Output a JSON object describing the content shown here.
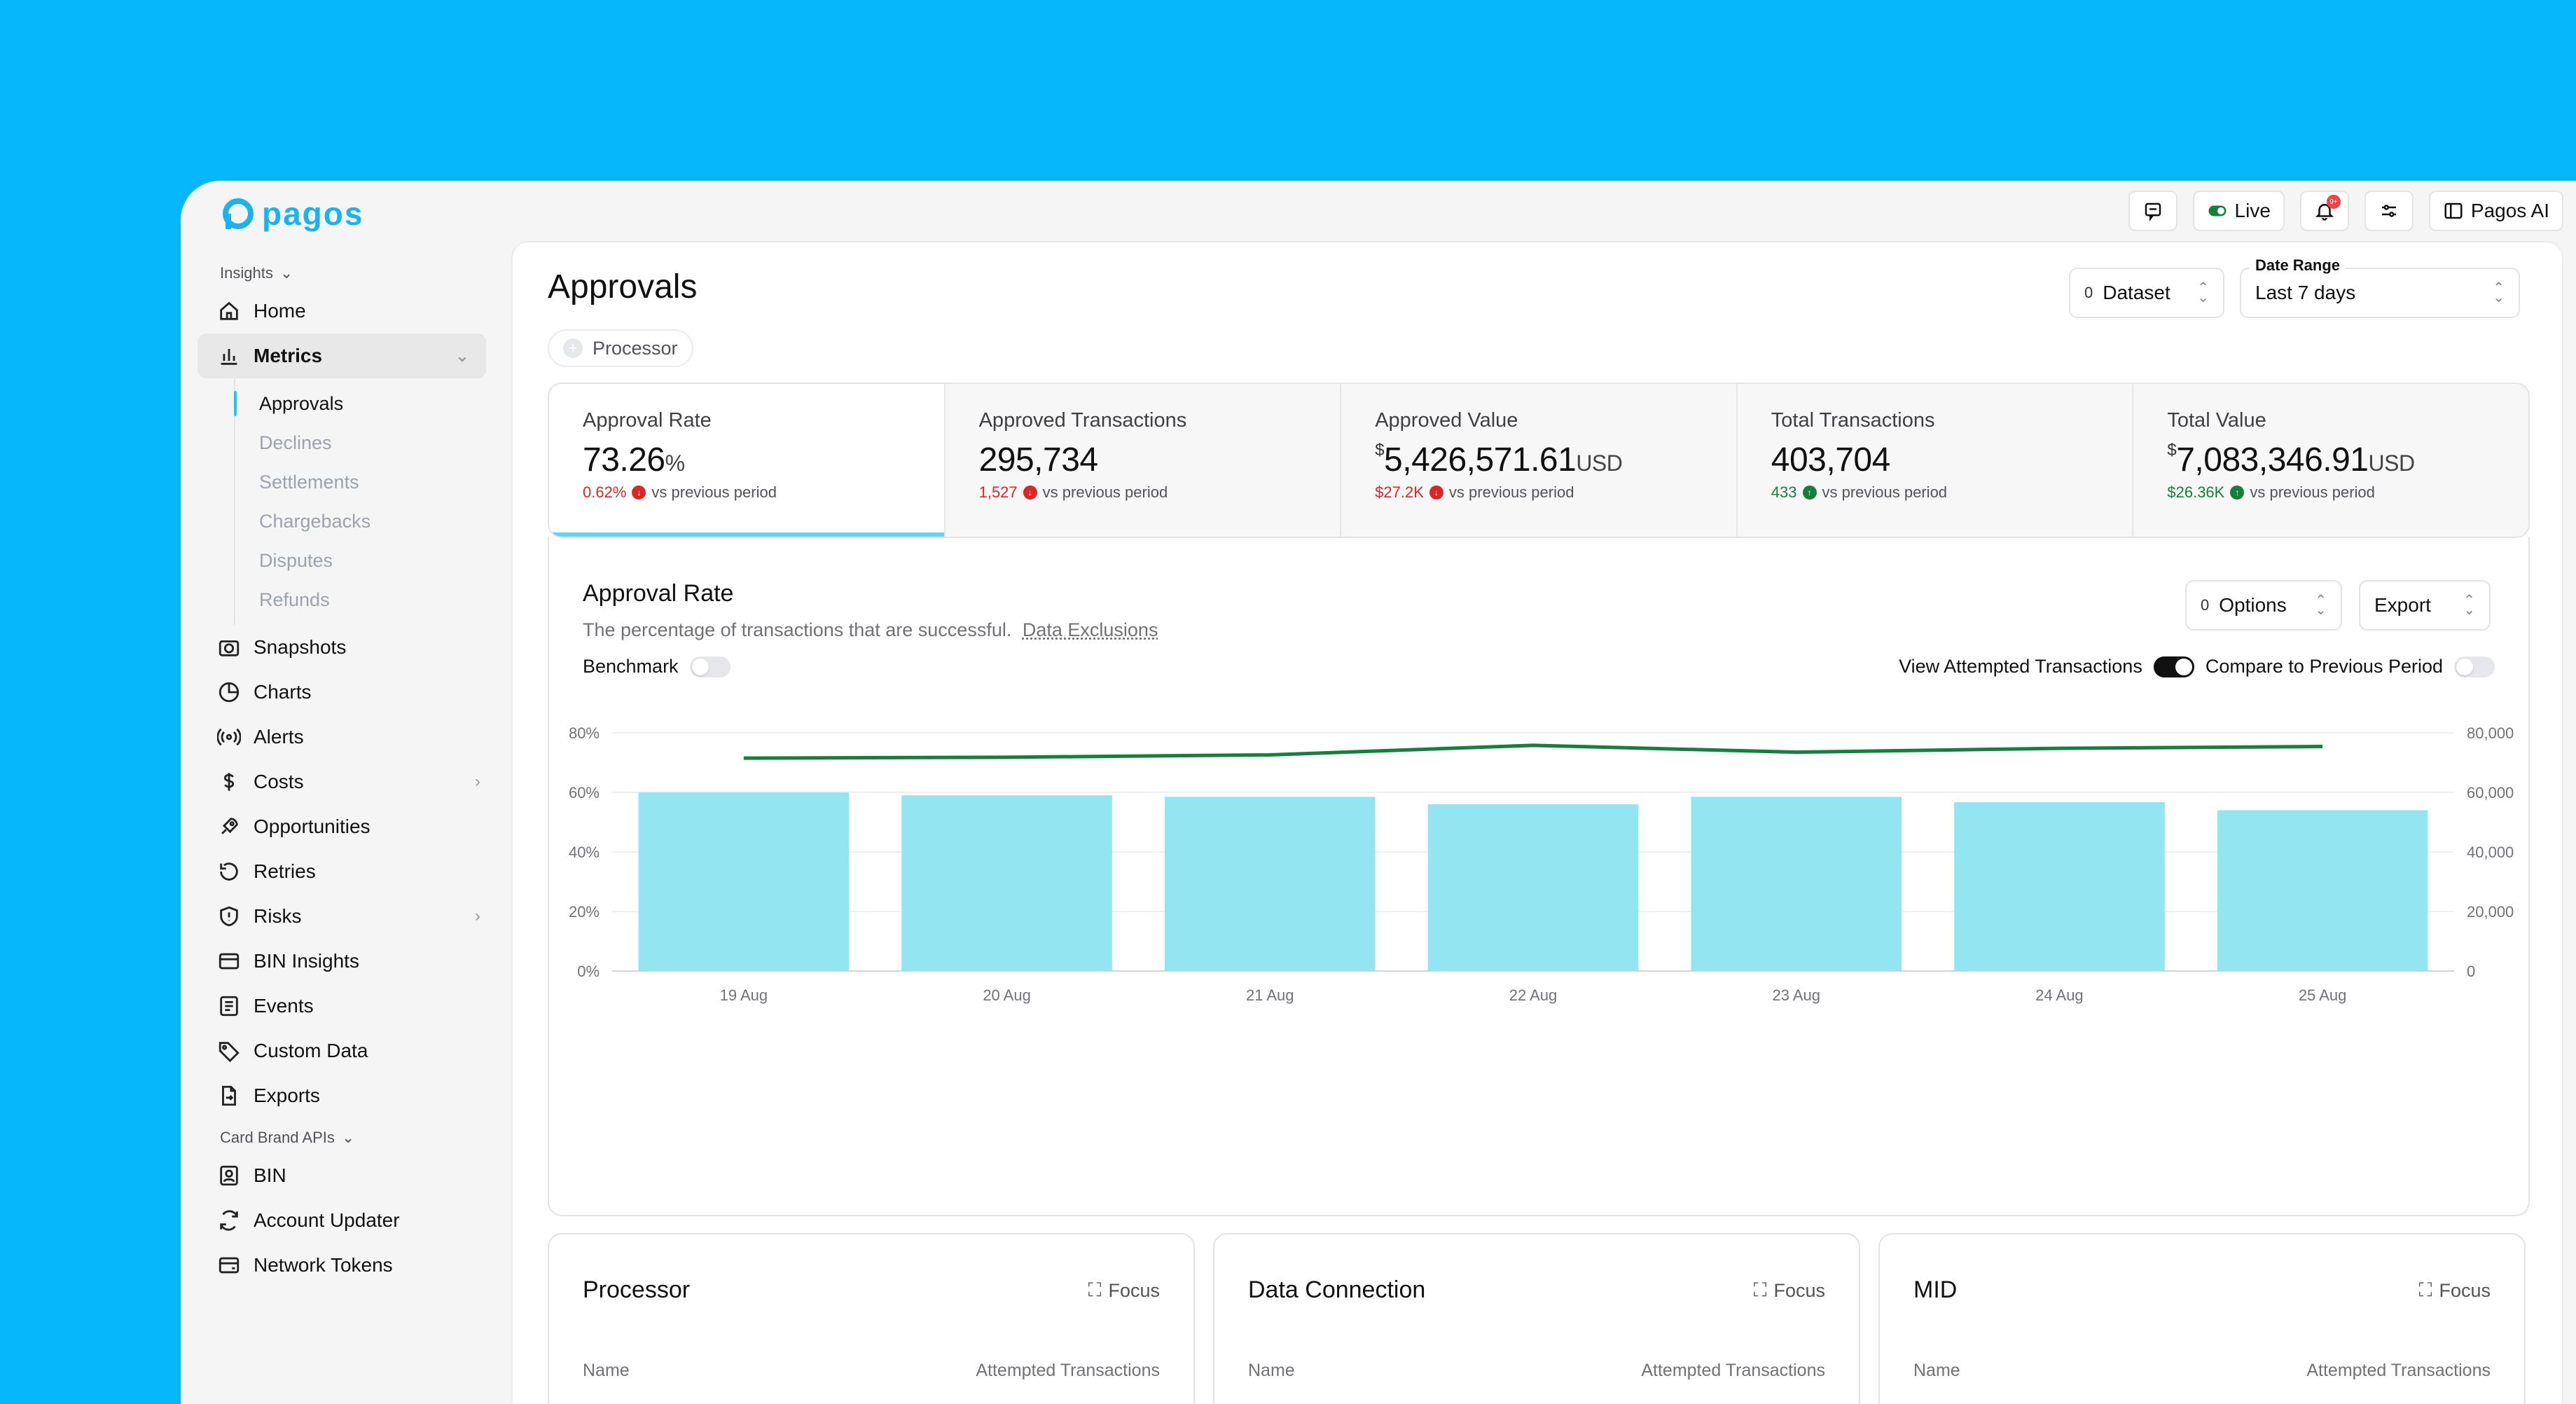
{
  "brand": {
    "name": "pagos"
  },
  "topbar": {
    "live_label": "Live",
    "notif_count": "9+",
    "ai_label": "Pagos AI"
  },
  "sidebar": {
    "section1": "Insights",
    "home": "Home",
    "metrics": "Metrics",
    "metrics_sub": [
      "Approvals",
      "Declines",
      "Settlements",
      "Chargebacks",
      "Disputes",
      "Refunds"
    ],
    "items": [
      "Snapshots",
      "Charts",
      "Alerts",
      "Costs",
      "Opportunities",
      "Retries",
      "Risks",
      "BIN Insights",
      "Events",
      "Custom Data",
      "Exports"
    ],
    "section2": "Card Brand APIs",
    "items2": [
      "BIN",
      "Account Updater",
      "Network Tokens"
    ]
  },
  "page": {
    "title": "Approvals",
    "filter_chip": "Processor",
    "dataset": {
      "count": "0",
      "label": "Dataset"
    },
    "date_range": {
      "label": "Date Range",
      "value": "Last 7 days"
    }
  },
  "kpis": [
    {
      "title": "Approval Rate",
      "prefix": "",
      "value": "73.26",
      "unit": "%",
      "delta": "0.62%",
      "delta_dir": "neg",
      "delta_text": "vs previous period"
    },
    {
      "title": "Approved Transactions",
      "prefix": "",
      "value": "295,734",
      "unit": "",
      "delta": "1,527",
      "delta_dir": "neg",
      "delta_text": "vs previous period"
    },
    {
      "title": "Approved Value",
      "prefix": "$",
      "value": "5,426,571.61",
      "unit": "USD",
      "delta": "$27.2K",
      "delta_dir": "neg",
      "delta_text": "vs previous period"
    },
    {
      "title": "Total Transactions",
      "prefix": "",
      "value": "403,704",
      "unit": "",
      "delta": "433",
      "delta_dir": "pos",
      "delta_text": "vs previous period"
    },
    {
      "title": "Total Value",
      "prefix": "$",
      "value": "7,083,346.91",
      "unit": "USD",
      "delta": "$26.36K",
      "delta_dir": "pos",
      "delta_text": "vs previous period"
    }
  ],
  "chart_card": {
    "title": "Approval Rate",
    "subtitle": "The percentage of transactions that are successful.",
    "subtitle_link": "Data Exclusions",
    "options": {
      "count": "0",
      "label": "Options"
    },
    "export_label": "Export",
    "benchmark_label": "Benchmark",
    "view_attempted_label": "View Attempted Transactions",
    "compare_label": "Compare to Previous Period"
  },
  "chart_data": {
    "type": "bar",
    "categories": [
      "19 Aug",
      "20 Aug",
      "21 Aug",
      "22 Aug",
      "23 Aug",
      "24 Aug",
      "25 Aug"
    ],
    "series": [
      {
        "type": "bar",
        "axis": "right",
        "values": [
          60000,
          59000,
          58500,
          56000,
          58500,
          56700,
          54000
        ],
        "color": "#93e6f1"
      },
      {
        "type": "line",
        "axis": "left",
        "values": [
          71.5,
          71.8,
          72.6,
          75.8,
          73.5,
          74.8,
          75.4
        ],
        "color": "#15803d"
      }
    ],
    "y_left": {
      "ticks": [
        "0%",
        "20%",
        "40%",
        "60%",
        "80%"
      ],
      "range": [
        0,
        80
      ]
    },
    "y_right": {
      "ticks": [
        "0",
        "20,000",
        "40,000",
        "60,000",
        "80,000"
      ],
      "range": [
        0,
        80000
      ]
    },
    "grid": true
  },
  "bottom_cards": [
    {
      "title": "Processor",
      "focus": "Focus",
      "col1": "Name",
      "col2": "Attempted Transactions"
    },
    {
      "title": "Data Connection",
      "focus": "Focus",
      "col1": "Name",
      "col2": "Attempted Transactions"
    },
    {
      "title": "MID",
      "focus": "Focus",
      "col1": "Name",
      "col2": "Attempted Transactions"
    }
  ],
  "colors": {
    "brand": "#19b4ef",
    "background": "#06b8fb",
    "accent": "#5fd6ef",
    "negative": "#dc2626",
    "positive": "#15803d"
  }
}
